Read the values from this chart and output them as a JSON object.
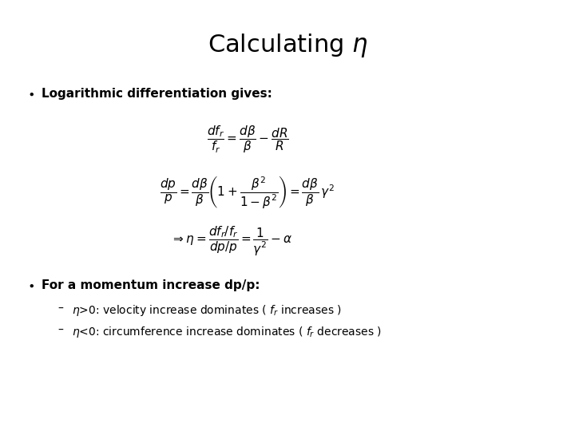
{
  "title": "Calculating $\\eta$",
  "title_fontsize": 22,
  "background_color": "#ffffff",
  "bullet1_text": "Logarithmic differentiation gives:",
  "bullet1_fontsize": 11,
  "eq1": "$\\dfrac{df_r}{f_r} = \\dfrac{d\\beta}{\\beta} - \\dfrac{dR}{R}$",
  "eq2": "$\\dfrac{dp}{p} = \\dfrac{d\\beta}{\\beta}\\left(1 + \\dfrac{\\beta^2}{1-\\beta^2}\\right) = \\dfrac{d\\beta}{\\beta}\\,\\gamma^2$",
  "eq3": "$\\Rightarrow \\eta = \\dfrac{df_r / f_r}{dp / p} = \\dfrac{1}{\\gamma^2} - \\alpha$",
  "eq_fontsize": 11,
  "bullet2_text": "For a momentum increase dp/p:",
  "bullet2_fontsize": 11,
  "sub1_text": "$\\eta$>0: velocity increase dominates ( $f_r$ increases )",
  "sub2_text": "$\\eta$<0: circumference increase dominates ( $f_r$ decreases )",
  "sub_fontsize": 10,
  "text_color": "#000000"
}
